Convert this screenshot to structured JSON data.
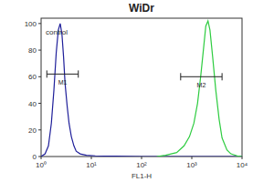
{
  "chart_data": {
    "type": "line",
    "title": "WiDr",
    "x_label": "FL1-H",
    "log": "x",
    "xlim": [
      1,
      10000
    ],
    "xticks": [
      {
        "value": 1,
        "label": "10⁰"
      },
      {
        "value": 10,
        "label": "10¹"
      },
      {
        "value": 100,
        "label": "10²"
      },
      {
        "value": 1000,
        "label": "10³"
      },
      {
        "value": 10000,
        "label": "10⁴"
      }
    ],
    "ylim": [
      0,
      104
    ],
    "yticks": [
      0,
      20,
      40,
      60,
      80,
      100
    ],
    "grid": false,
    "series": [
      {
        "name": "control",
        "color": "#1f1f9a",
        "x": [
          1,
          1.2,
          1.4,
          1.6,
          1.8,
          2.0,
          2.2,
          2.4,
          2.6,
          2.8,
          3.0,
          3.3,
          3.6,
          4.0,
          4.5,
          5.0,
          6.0,
          8.0,
          12,
          30,
          100,
          1000,
          10000
        ],
        "values": [
          0,
          2,
          8,
          25,
          50,
          78,
          95,
          100,
          92,
          75,
          55,
          38,
          25,
          15,
          8,
          4,
          2,
          1,
          0.5,
          0.3,
          0,
          0,
          0
        ]
      },
      {
        "color": "#2ecc40",
        "x": [
          200,
          300,
          500,
          700,
          900,
          1100,
          1300,
          1500,
          1700,
          1900,
          2100,
          2300,
          2600,
          3000,
          3500,
          4000,
          5000,
          6000,
          8000,
          10000
        ],
        "values": [
          0,
          1,
          3,
          8,
          15,
          25,
          40,
          60,
          80,
          98,
          102,
          95,
          75,
          50,
          28,
          14,
          5,
          2,
          0.5,
          0
        ]
      }
    ],
    "gates": [
      {
        "label": "M1",
        "range": [
          1.3,
          5.5
        ],
        "y": 62
      },
      {
        "label": "M2",
        "range": [
          600,
          4000
        ],
        "y": 60
      }
    ]
  }
}
